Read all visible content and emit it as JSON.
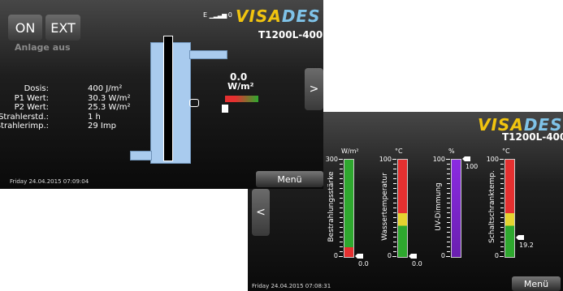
{
  "screens": [
    {
      "buttons": [
        "ON",
        "EXT"
      ],
      "status": "Anlage aus",
      "signal": [
        "E",
        "0"
      ],
      "logo": [
        "VISA",
        "DES"
      ],
      "model": "T1200L-400",
      "readout": {
        "value": "0.0",
        "unit": "W/m²"
      },
      "next": ">",
      "info": [
        {
          "label": "Dosis:",
          "value": "400 J/m²"
        },
        {
          "label": "P1 Wert:",
          "value": "30.3 W/m²"
        },
        {
          "label": "P2 Wert:",
          "value": "25.3 W/m²"
        },
        {
          "label": "Strahlerstd.:",
          "value": "1 h"
        },
        {
          "label": "Strahlerimp.:",
          "value": "29 Imp"
        }
      ],
      "datetime": "Friday 24.04.2015 07:09:04",
      "menu": "Menü"
    },
    {
      "prev": "<",
      "logo": [
        "VISA",
        "DES"
      ],
      "model": "T1200L-400",
      "gauges": [
        {
          "unit": "W/m²",
          "label": "Bestrahlungsstärke",
          "scale": [
            0,
            300
          ],
          "value": {
            "value": 0,
            "label": "0.0"
          }
        },
        {
          "unit": "°C",
          "label": "Wassertemperatur",
          "scale": [
            0,
            100
          ],
          "value": {
            "value": 0,
            "label": "0.0"
          }
        },
        {
          "unit": "%",
          "label": "UV-Dimmung",
          "scale": [
            0,
            100
          ],
          "value": 100
        },
        {
          "unit": "°C",
          "label": "Schaltschranktemp.",
          "scale": [
            0,
            100
          ],
          "value": 19.2
        }
      ],
      "datetime": "Friday 24.04.2015 07:08:31",
      "menu": "Menü"
    }
  ]
}
